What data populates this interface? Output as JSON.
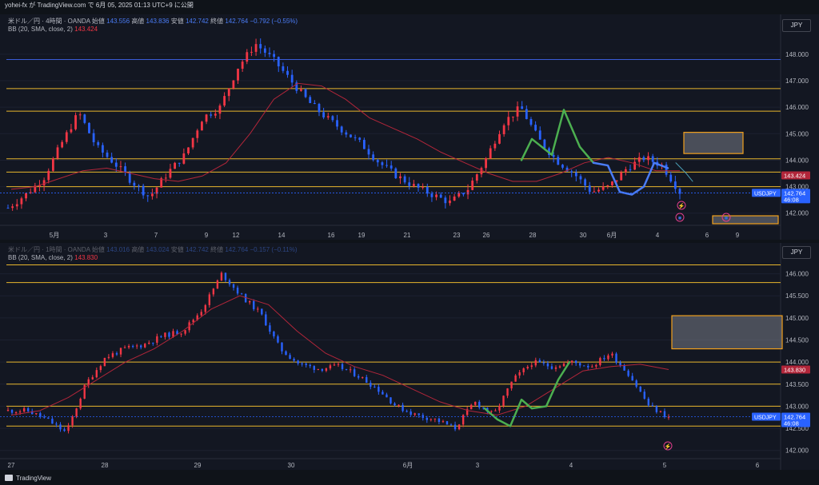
{
  "header": {
    "text": "yohei-fx が TradingView.com で 6月 05, 2025 01:13 UTC+9 に公開"
  },
  "footer": {
    "brand": "TradingView"
  },
  "colors": {
    "up": "#f23645",
    "down": "#2962ff",
    "bb": "#b2263a",
    "hline": "#e8b62c",
    "blue_line": "#3a5bd6",
    "green": "#4caf50"
  },
  "top": {
    "legend": {
      "symbol": "米ドル／円 · 4時間 · OANDA",
      "o_label": "始値",
      "o": "143.556",
      "h_label": "高値",
      "h": "143.836",
      "l_label": "安値",
      "l": "142.742",
      "c_label": "終値",
      "c": "142.764",
      "chg": "−0.792 (−0.55%)",
      "bb_label": "BB (20, SMA, close, 2)",
      "bb": "143.424"
    },
    "currency": "JPY",
    "price_ticks": [
      "148.000",
      "147.000",
      "146.000",
      "145.000",
      "144.000",
      "143.000",
      "142.000"
    ],
    "bb_badge": "143.424",
    "price_badge": {
      "symbol": "USDJPY",
      "price": "142.764",
      "timer": "46:08"
    },
    "date_ticks": [
      "5月",
      "3",
      "7",
      "9",
      "12",
      "14",
      "16",
      "19",
      "21",
      "23",
      "26",
      "28",
      "30",
      "6月",
      "4",
      "6",
      "9"
    ]
  },
  "bottom": {
    "legend": {
      "symbol": "米ドル／円 · 1時間 · OANDA",
      "o_label": "始値",
      "o": "143.016",
      "h_label": "高値",
      "h": "143.024",
      "l_label": "安値",
      "l": "142.742",
      "c_label": "終値",
      "c": "142.764",
      "chg": "−0.157 (−0.11%)",
      "bb_label": "BB (20, SMA, close, 2)",
      "bb": "143.830"
    },
    "currency": "JPY",
    "price_ticks": [
      "146.000",
      "145.500",
      "145.000",
      "144.500",
      "144.000",
      "143.500",
      "143.000",
      "142.500",
      "142.000"
    ],
    "bb_badge": "143.830",
    "price_badge": {
      "symbol": "USDJPY",
      "price": "142.764",
      "timer": "46:08"
    },
    "date_ticks": [
      "27",
      "28",
      "29",
      "30",
      "6月",
      "3",
      "4",
      "5",
      "6"
    ]
  },
  "chart_data": [
    {
      "type": "candlestick",
      "title": "米ドル／円 · 4時間 · OANDA",
      "ylim": [
        141.6,
        148.9
      ],
      "x": [
        "5月",
        "3",
        "7",
        "9",
        "12",
        "14",
        "16",
        "19",
        "21",
        "23",
        "26",
        "28",
        "30",
        "6月",
        "4"
      ],
      "close_path": [
        142.2,
        142.7,
        143.3,
        144.6,
        145.8,
        144.5,
        143.9,
        143.2,
        142.6,
        143.5,
        144.2,
        145.6,
        146.0,
        147.5,
        148.4,
        147.8,
        147.0,
        146.2,
        145.6,
        145.1,
        144.6,
        143.9,
        143.4,
        143.0,
        142.7,
        142.4,
        142.9,
        144.0,
        145.4,
        146.0,
        144.8,
        144.0,
        143.5,
        142.8,
        143.0,
        143.7,
        144.1,
        143.8,
        142.8
      ],
      "hlines": [
        147.8,
        146.7,
        145.85,
        144.05,
        143.55,
        143.0
      ],
      "bb_basis_path": [
        142.9,
        143.0,
        143.3,
        143.6,
        143.7,
        143.5,
        143.3,
        143.2,
        143.4,
        143.9,
        145.0,
        146.3,
        146.9,
        146.8,
        146.3,
        145.6,
        145.2,
        144.8,
        144.3,
        143.9,
        143.5,
        143.2,
        143.2,
        143.5,
        143.9,
        144.1,
        143.9,
        143.6,
        143.6
      ],
      "series": [
        {
          "name": "BB (20, SMA, close, 2)",
          "last": 143.424
        }
      ],
      "last_price": 142.764
    },
    {
      "type": "candlestick",
      "title": "米ドル／円 · 1時間 · OANDA",
      "ylim": [
        141.85,
        146.3
      ],
      "x": [
        "27",
        "28",
        "29",
        "30",
        "6月",
        "3",
        "4",
        "5",
        "6"
      ],
      "close_path": [
        142.9,
        142.9,
        142.7,
        142.4,
        143.5,
        144.1,
        144.3,
        144.4,
        144.6,
        144.7,
        145.2,
        146.0,
        145.5,
        145.1,
        144.3,
        143.95,
        143.85,
        143.9,
        143.7,
        143.4,
        143.0,
        142.8,
        142.7,
        142.5,
        143.1,
        142.8,
        143.6,
        144.0,
        143.9,
        144.0,
        143.9,
        144.2,
        143.7,
        143.0,
        142.75
      ],
      "hlines": [
        146.2,
        145.8,
        144.0,
        143.5,
        143.0,
        142.55
      ],
      "bb_basis_path": [
        142.8,
        142.9,
        143.2,
        143.6,
        144.0,
        144.3,
        144.7,
        145.2,
        145.5,
        145.3,
        144.7,
        144.2,
        143.9,
        143.7,
        143.4,
        143.1,
        142.9,
        142.8,
        143.0,
        143.4,
        143.8,
        143.9,
        143.95,
        143.83
      ],
      "series": [
        {
          "name": "BB (20, SMA, close, 2)",
          "last": 143.83
        }
      ],
      "last_price": 142.764
    }
  ]
}
